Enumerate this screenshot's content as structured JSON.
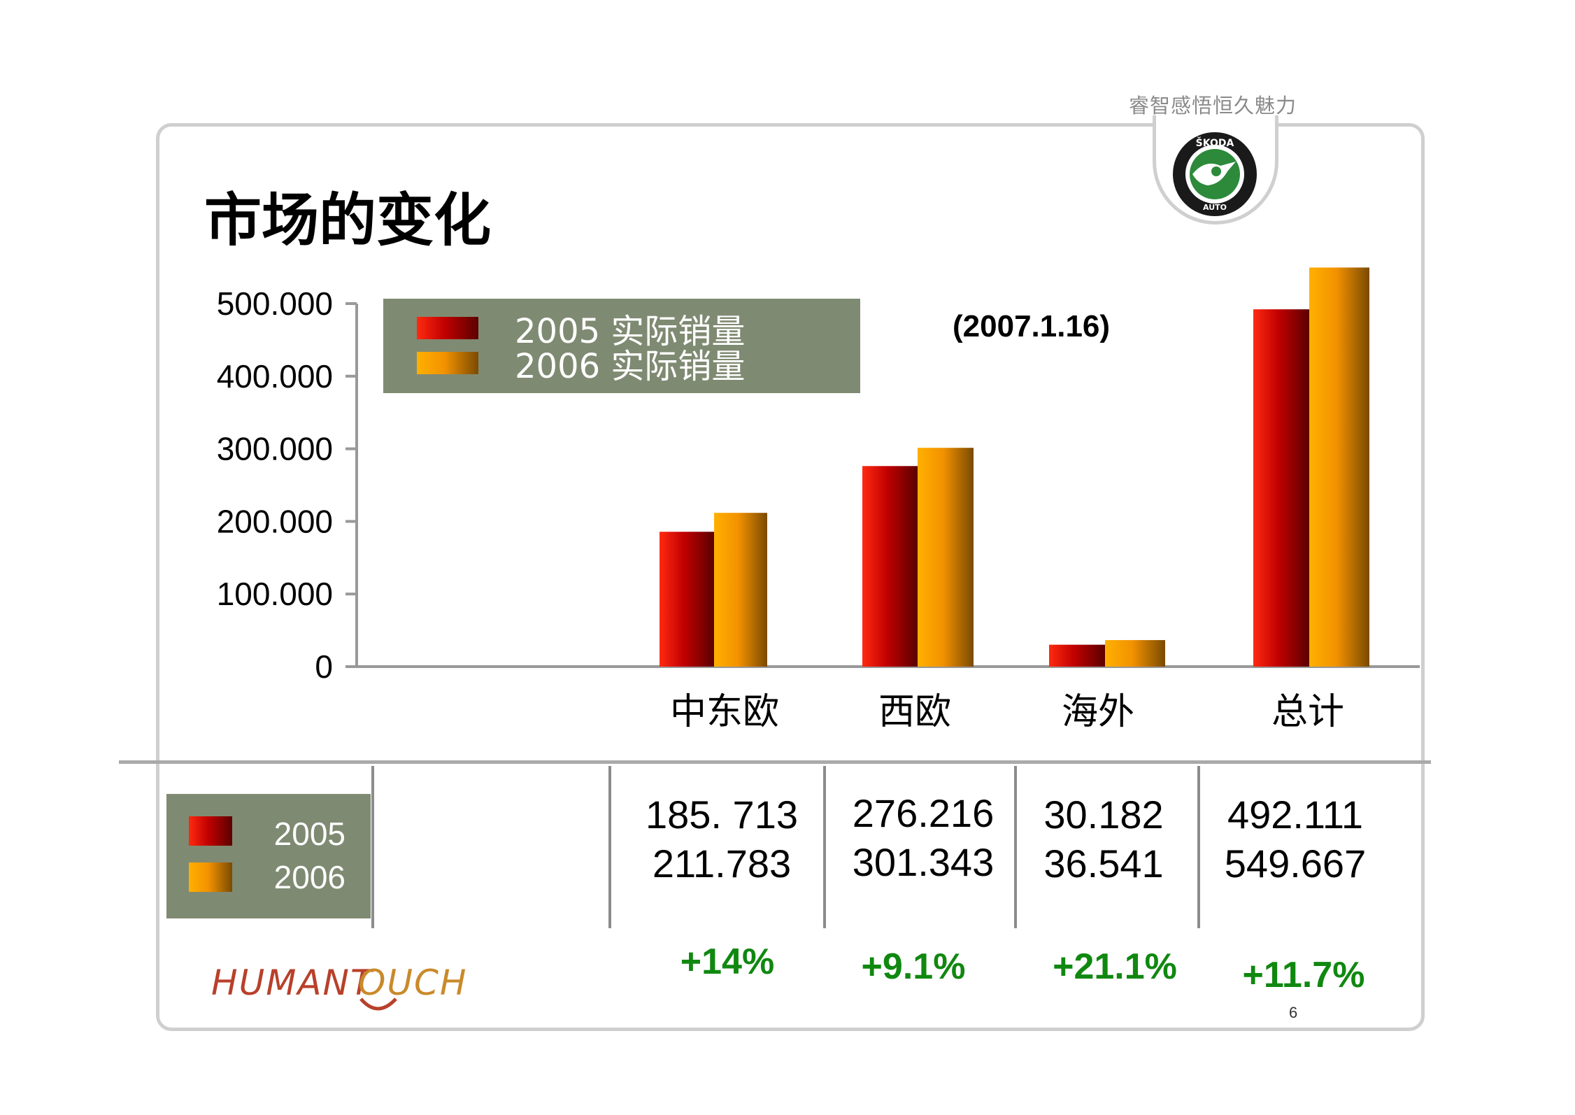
{
  "brand": {
    "tagline": "睿智感悟恒久魅力",
    "logo_text": "ŠKODA AUTO",
    "footer_logo": "HUMANTOUCH"
  },
  "title": "市场的变化",
  "date_note": "(2007.1.16)",
  "legend": [
    {
      "label": "2005  实际销量",
      "color": "#c00000"
    },
    {
      "label": "2006  实际销量",
      "color": "#f39200"
    }
  ],
  "chart_data": {
    "type": "bar",
    "categories": [
      "中东欧",
      "西欧",
      "海外",
      "总计"
    ],
    "series": [
      {
        "name": "2005  实际销量",
        "values": [
          185.713,
          276.216,
          30.182,
          492.111
        ]
      },
      {
        "name": "2006  实际销量",
        "values": [
          211.783,
          301.343,
          36.541,
          549.667
        ]
      }
    ],
    "y_ticks": [
      "500.000",
      "400.000",
      "300.000",
      "200.000",
      "100.000",
      "0"
    ],
    "ylim": [
      0,
      500
    ],
    "grid": false,
    "colors": {
      "series_2005": "#c00000",
      "series_2006": "#f39200"
    }
  },
  "table": {
    "legend": [
      "2005",
      "2006"
    ],
    "columns": [
      {
        "v2005": "185. 713",
        "v2006": "211.783",
        "growth": "+14%"
      },
      {
        "v2005": "276.216",
        "v2006": "301.343",
        "growth": "+9.1%"
      },
      {
        "v2005": "30.182",
        "v2006": "36.541",
        "growth": "+21.1%"
      },
      {
        "v2005": "492.111",
        "v2006": "549.667",
        "growth": "+11.7%"
      }
    ]
  },
  "page_number": "6"
}
